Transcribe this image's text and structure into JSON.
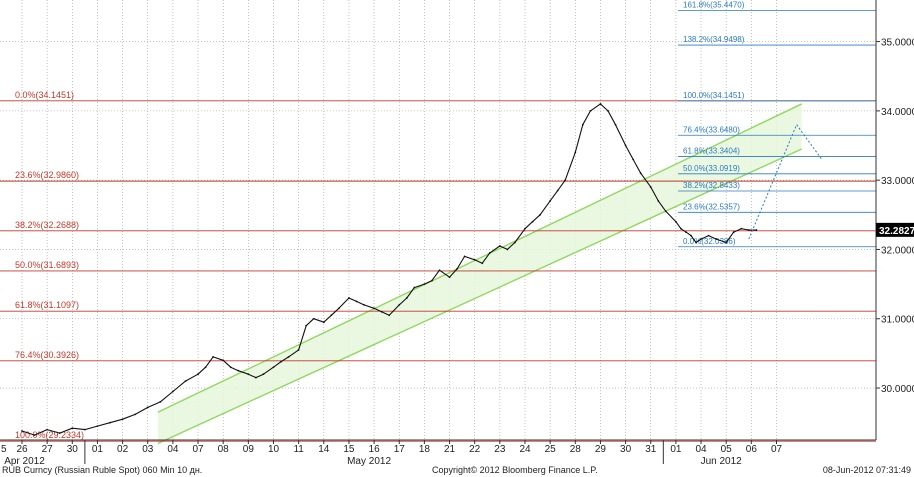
{
  "chart_data": {
    "type": "line",
    "title": "",
    "xlabel": "",
    "ylabel": "",
    "ylim": [
      29.25,
      35.6
    ],
    "grid": true,
    "colors": {
      "price": "#111111",
      "fib_left": "#c0392b",
      "fib_right": "#2b7bc0",
      "channel_line": "#8fd85f",
      "channel_fill": "#e6f7dc",
      "last_price_bg": "#000000",
      "projection": "#2b7bc0"
    },
    "x_ticks": [
      "26",
      "27",
      "30",
      "01",
      "02",
      "03",
      "04",
      "07",
      "08",
      "09",
      "10",
      "11",
      "14",
      "15",
      "16",
      "17",
      "18",
      "21",
      "22",
      "23",
      "24",
      "25",
      "28",
      "29",
      "30",
      "31",
      "01",
      "04",
      "05",
      "06",
      "07"
    ],
    "x_edge_label": "5",
    "months": [
      "Apr 2012",
      "May 2012",
      "Jun 2012"
    ],
    "y_ticks": [
      "30.0000",
      "31.0000",
      "32.0000",
      "33.0000",
      "34.0000",
      "35.0000"
    ],
    "last_price": "32.2827",
    "fib_left": [
      {
        "label": "0.0%(34.1451)",
        "value": 34.1451
      },
      {
        "label": "23.6%(32.9860)",
        "value": 32.986
      },
      {
        "label": "38.2%(32.2688)",
        "value": 32.2688
      },
      {
        "label": "50.0%(31.6893)",
        "value": 31.6893
      },
      {
        "label": "61.8%(31.1097)",
        "value": 31.1097
      },
      {
        "label": "76.4%(30.3926)",
        "value": 30.3926
      },
      {
        "label": "100.0%(29.2334)",
        "value": 29.2334
      }
    ],
    "fib_right": [
      {
        "label": "161.8%(35.4470)",
        "value": 35.447
      },
      {
        "label": "138.2%(34.9498)",
        "value": 34.9498
      },
      {
        "label": "100.0%(34.1451)",
        "value": 34.1451
      },
      {
        "label": "76.4%(33.6480)",
        "value": 33.648
      },
      {
        "label": "61.8%(33.3404)",
        "value": 33.3404
      },
      {
        "label": "50.0%(33.0919)",
        "value": 33.0919
      },
      {
        "label": "38.2%(32.8433)",
        "value": 32.8433
      },
      {
        "label": "23.6%(32.5357)",
        "value": 32.5357
      },
      {
        "label": "0.0%(32.0386)",
        "value": 32.0386
      }
    ],
    "channel": {
      "upper": [
        [
          5.4,
          29.65
        ],
        [
          31,
          34.1
        ]
      ],
      "lower": [
        [
          5.4,
          29.2
        ],
        [
          31,
          33.45
        ]
      ]
    },
    "projection": [
      [
        28.9,
        32.15
      ],
      [
        30.8,
        33.8
      ],
      [
        31.8,
        33.3
      ]
    ],
    "series": [
      {
        "x": [
          0,
          0.5,
          1,
          1.5,
          2,
          2.5,
          3,
          3.5,
          4,
          4.5,
          5,
          5.5,
          6,
          6.5,
          7,
          7.3,
          7.6,
          8,
          8.3,
          8.6,
          9,
          9.3,
          9.6,
          10,
          10.3,
          10.6,
          11,
          11.3,
          11.6,
          12,
          12.3,
          12.6,
          13,
          13.3,
          13.6,
          14,
          14.3,
          14.6,
          15,
          15.3,
          15.6,
          16,
          16.3,
          16.6,
          17,
          17.3,
          17.6,
          18,
          18.3,
          18.6,
          19,
          19.3,
          19.6,
          20,
          20.3,
          20.6,
          21,
          21.3,
          21.6,
          22,
          22.3,
          22.6,
          23,
          23.3,
          23.6,
          24,
          24.3,
          24.6,
          25,
          25.3,
          25.6,
          26,
          26.2,
          26.4,
          26.6,
          26.8,
          27,
          27.3,
          27.6,
          28,
          28.3,
          28.6,
          28.9,
          29.2
        ],
        "values": [
          29.38,
          29.32,
          29.4,
          29.35,
          29.42,
          29.4,
          29.45,
          29.5,
          29.55,
          29.62,
          29.72,
          29.8,
          29.95,
          30.1,
          30.2,
          30.3,
          30.45,
          30.4,
          30.3,
          30.25,
          30.2,
          30.15,
          30.2,
          30.3,
          30.38,
          30.45,
          30.55,
          30.9,
          31.0,
          30.95,
          31.05,
          31.15,
          31.3,
          31.25,
          31.2,
          31.15,
          31.1,
          31.05,
          31.2,
          31.3,
          31.45,
          31.5,
          31.55,
          31.7,
          31.6,
          31.72,
          31.9,
          31.85,
          31.8,
          31.95,
          32.05,
          32.0,
          32.1,
          32.3,
          32.4,
          32.5,
          32.7,
          32.85,
          33.0,
          33.4,
          33.8,
          34.0,
          34.1,
          34.0,
          33.8,
          33.5,
          33.3,
          33.1,
          32.9,
          32.7,
          32.55,
          32.4,
          32.3,
          32.25,
          32.2,
          32.1,
          32.15,
          32.2,
          32.15,
          32.1,
          32.25,
          32.3,
          32.28,
          32.28
        ]
      }
    ]
  },
  "footer": {
    "left": "RUB Curncy (Russian Ruble Spot) 060 Min 10 дн.",
    "center": "Copyright© 2012 Bloomberg Finance L.P.",
    "right": "08-Jun-2012 07:31:49"
  }
}
